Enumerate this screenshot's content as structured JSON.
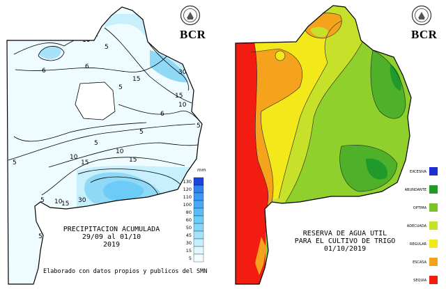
{
  "brand": "BCR",
  "precipitation_map": {
    "title_line1": "PRECIPITACION ACUMULADA",
    "title_line2": "29/09 al 01/10",
    "title_line3": "2019",
    "credit": "Elaborado con datos propios y publicos del SMN",
    "unit": "mm",
    "legend": [
      {
        "value": "130",
        "color": "#2040e0"
      },
      {
        "value": "120",
        "color": "#3080f0"
      },
      {
        "value": "110",
        "color": "#3b98f4"
      },
      {
        "value": "100",
        "color": "#48aaf6"
      },
      {
        "value": "80",
        "color": "#58bcf6"
      },
      {
        "value": "60",
        "color": "#6ccbf7"
      },
      {
        "value": "50",
        "color": "#84d6f8"
      },
      {
        "value": "45",
        "color": "#a4e2fa"
      },
      {
        "value": "30",
        "color": "#c4eefc"
      },
      {
        "value": "15",
        "color": "#e0f7fe"
      },
      {
        "value": "5",
        "color": "#f2fcff"
      }
    ],
    "isolines": [
      "5",
      "10",
      "10",
      "5",
      "6",
      "6",
      "5",
      "15",
      "30",
      "15",
      "10",
      "6",
      "5",
      "5",
      "10",
      "15",
      "5",
      "10",
      "15",
      "30",
      "5",
      "10",
      "15",
      "5",
      "5"
    ]
  },
  "water_map": {
    "title_line1": "RESERVA DE AGUA UTIL",
    "title_line2": "PARA EL CULTIVO DE TRIGO",
    "title_line3": "01/10/2019",
    "legend": [
      {
        "label": "EXCESIVA",
        "color": "#1f2fcf"
      },
      {
        "label": "ABUNDANTE",
        "color": "#1f9a2b"
      },
      {
        "label": "OPTIMA",
        "color": "#7cc22a"
      },
      {
        "label": "ADECUADA",
        "color": "#c7e02a"
      },
      {
        "label": "REGULAR",
        "color": "#f3e81a"
      },
      {
        "label": "ESCASA",
        "color": "#f5a21c"
      },
      {
        "label": "SEQUIA",
        "color": "#f21c10"
      }
    ]
  }
}
